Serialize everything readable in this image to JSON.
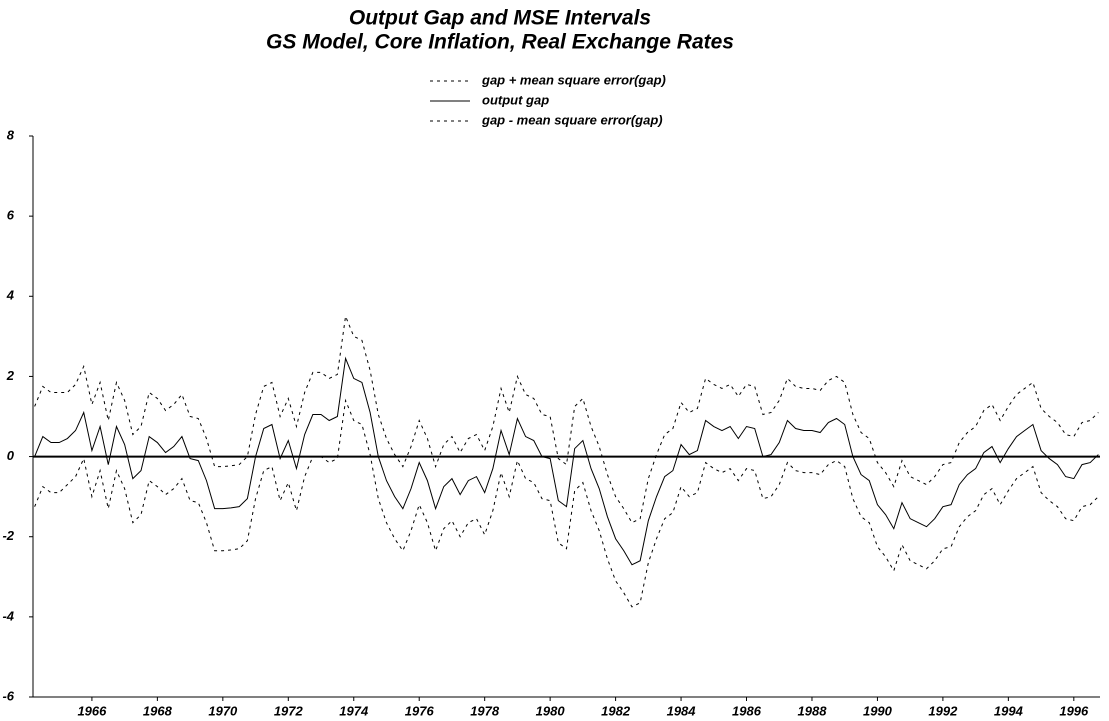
{
  "chart_data": {
    "type": "line",
    "title": "Output Gap and MSE Intervals",
    "subtitle": "GS Model, Core Inflation, Real Exchange Rates",
    "x": [
      1964.25,
      1964.5,
      1964.75,
      1965,
      1965.25,
      1965.5,
      1965.75,
      1966,
      1966.25,
      1966.5,
      1966.75,
      1967,
      1967.25,
      1967.5,
      1967.75,
      1968,
      1968.25,
      1968.5,
      1968.75,
      1969,
      1969.25,
      1969.5,
      1969.75,
      1970,
      1970.25,
      1970.5,
      1970.75,
      1971,
      1971.25,
      1971.5,
      1971.75,
      1972,
      1972.25,
      1972.5,
      1972.75,
      1973,
      1973.25,
      1973.5,
      1973.75,
      1974,
      1974.25,
      1974.5,
      1974.75,
      1975,
      1975.25,
      1975.5,
      1975.75,
      1976,
      1976.25,
      1976.5,
      1976.75,
      1977,
      1977.25,
      1977.5,
      1977.75,
      1978,
      1978.25,
      1978.5,
      1978.75,
      1979,
      1979.25,
      1979.5,
      1979.75,
      1980,
      1980.25,
      1980.5,
      1980.75,
      1981,
      1981.25,
      1981.5,
      1981.75,
      1982,
      1982.25,
      1982.5,
      1982.75,
      1983,
      1983.25,
      1983.5,
      1983.75,
      1984,
      1984.25,
      1984.5,
      1984.75,
      1985,
      1985.25,
      1985.5,
      1985.75,
      1986,
      1986.25,
      1986.5,
      1986.75,
      1987,
      1987.25,
      1987.5,
      1987.75,
      1988,
      1988.25,
      1988.5,
      1988.75,
      1989,
      1989.25,
      1989.5,
      1989.75,
      1990,
      1990.25,
      1990.5,
      1990.75,
      1991,
      1991.25,
      1991.5,
      1991.75,
      1992,
      1992.25,
      1992.5,
      1992.75,
      1993,
      1993.25,
      1993.5,
      1993.75,
      1994,
      1994.25,
      1994.5,
      1994.75,
      1995,
      1995.25,
      1995.5,
      1995.75,
      1996,
      1996.25,
      1996.5,
      1996.75
    ],
    "series": [
      {
        "name": "gap + mean square error(gap)",
        "color": "#000000",
        "style": "dashed",
        "values": [
          1.25,
          1.75,
          1.6,
          1.6,
          1.6,
          1.8,
          2.25,
          1.3,
          1.85,
          0.9,
          1.85,
          1.4,
          0.55,
          0.75,
          1.6,
          1.45,
          1.15,
          1.3,
          1.55,
          1.0,
          0.95,
          0.45,
          -0.25,
          -0.25,
          -0.23,
          -0.2,
          0.0,
          1.05,
          1.75,
          1.85,
          1.0,
          1.45,
          0.75,
          1.6,
          2.1,
          2.1,
          1.95,
          2.05,
          3.5,
          3.0,
          2.9,
          2.15,
          1.05,
          0.45,
          0.05,
          -0.25,
          0.25,
          0.9,
          0.45,
          -0.25,
          0.3,
          0.5,
          0.1,
          0.45,
          0.55,
          0.15,
          0.75,
          1.7,
          1.1,
          2.0,
          1.55,
          1.45,
          1.05,
          1.0,
          -0.05,
          -0.2,
          1.25,
          1.45,
          0.75,
          0.25,
          -0.45,
          -1.0,
          -1.3,
          -1.65,
          -1.55,
          -0.55,
          0.05,
          0.55,
          0.7,
          1.35,
          1.1,
          1.2,
          1.95,
          1.8,
          1.7,
          1.8,
          1.5,
          1.8,
          1.75,
          1.05,
          1.1,
          1.4,
          1.95,
          1.75,
          1.7,
          1.7,
          1.65,
          1.9,
          2.0,
          1.85,
          1.05,
          0.6,
          0.45,
          -0.15,
          -0.4,
          -0.75,
          -0.1,
          -0.5,
          -0.6,
          -0.7,
          -0.5,
          -0.2,
          -0.15,
          0.35,
          0.6,
          0.75,
          1.15,
          1.3,
          0.9,
          1.25,
          1.55,
          1.7,
          1.85,
          1.2,
          1.0,
          0.85,
          0.55,
          0.5,
          0.85,
          0.9,
          1.1
        ]
      },
      {
        "name": "output gap",
        "color": "#000000",
        "style": "solid",
        "values": [
          0.0,
          0.5,
          0.35,
          0.35,
          0.45,
          0.65,
          1.1,
          0.15,
          0.75,
          -0.2,
          0.75,
          0.3,
          -0.55,
          -0.35,
          0.5,
          0.35,
          0.1,
          0.25,
          0.5,
          -0.05,
          -0.1,
          -0.6,
          -1.3,
          -1.3,
          -1.28,
          -1.25,
          -1.05,
          0.0,
          0.7,
          0.8,
          -0.05,
          0.4,
          -0.3,
          0.55,
          1.05,
          1.05,
          0.9,
          1.0,
          2.45,
          1.95,
          1.85,
          1.1,
          0.0,
          -0.6,
          -1.0,
          -1.3,
          -0.8,
          -0.15,
          -0.6,
          -1.3,
          -0.75,
          -0.55,
          -0.95,
          -0.6,
          -0.5,
          -0.9,
          -0.3,
          0.65,
          0.05,
          0.95,
          0.5,
          0.4,
          0.0,
          -0.05,
          -1.1,
          -1.25,
          0.2,
          0.4,
          -0.3,
          -0.8,
          -1.5,
          -2.05,
          -2.35,
          -2.7,
          -2.6,
          -1.6,
          -1.0,
          -0.5,
          -0.35,
          0.3,
          0.05,
          0.15,
          0.9,
          0.75,
          0.65,
          0.75,
          0.45,
          0.75,
          0.7,
          0.0,
          0.05,
          0.35,
          0.9,
          0.7,
          0.65,
          0.65,
          0.6,
          0.85,
          0.95,
          0.8,
          0.0,
          -0.45,
          -0.6,
          -1.2,
          -1.45,
          -1.8,
          -1.15,
          -1.55,
          -1.65,
          -1.75,
          -1.55,
          -1.25,
          -1.2,
          -0.7,
          -0.45,
          -0.3,
          0.1,
          0.25,
          -0.15,
          0.2,
          0.5,
          0.65,
          0.8,
          0.15,
          -0.05,
          -0.2,
          -0.5,
          -0.55,
          -0.2,
          -0.15,
          0.05
        ]
      },
      {
        "name": "gap - mean square error(gap)",
        "color": "#000000",
        "style": "dashed",
        "values": [
          -1.25,
          -0.75,
          -0.9,
          -0.9,
          -0.7,
          -0.5,
          -0.05,
          -1.0,
          -0.35,
          -1.3,
          -0.35,
          -0.8,
          -1.65,
          -1.45,
          -0.6,
          -0.75,
          -0.95,
          -0.8,
          -0.55,
          -1.1,
          -1.15,
          -1.65,
          -2.35,
          -2.35,
          -2.33,
          -2.3,
          -2.1,
          -1.05,
          -0.35,
          -0.25,
          -1.1,
          -0.65,
          -1.35,
          -0.5,
          0.0,
          0.0,
          -0.15,
          -0.05,
          1.4,
          0.9,
          0.8,
          0.05,
          -1.05,
          -1.65,
          -2.05,
          -2.35,
          -1.85,
          -1.2,
          -1.65,
          -2.35,
          -1.8,
          -1.6,
          -2.0,
          -1.65,
          -1.55,
          -1.95,
          -1.35,
          -0.4,
          -1.0,
          -0.1,
          -0.55,
          -0.65,
          -1.05,
          -1.1,
          -2.15,
          -2.3,
          -0.85,
          -0.65,
          -1.35,
          -1.85,
          -2.55,
          -3.1,
          -3.4,
          -3.75,
          -3.65,
          -2.65,
          -2.05,
          -1.55,
          -1.4,
          -0.75,
          -1.0,
          -0.9,
          -0.15,
          -0.3,
          -0.4,
          -0.3,
          -0.6,
          -0.3,
          -0.35,
          -1.05,
          -1.0,
          -0.7,
          -0.15,
          -0.35,
          -0.4,
          -0.4,
          -0.45,
          -0.2,
          -0.1,
          -0.25,
          -1.05,
          -1.5,
          -1.65,
          -2.25,
          -2.5,
          -2.85,
          -2.2,
          -2.6,
          -2.7,
          -2.8,
          -2.6,
          -2.3,
          -2.25,
          -1.75,
          -1.5,
          -1.35,
          -0.95,
          -0.8,
          -1.2,
          -0.85,
          -0.55,
          -0.4,
          -0.25,
          -0.9,
          -1.1,
          -1.25,
          -1.55,
          -1.6,
          -1.25,
          -1.2,
          -1.0
        ]
      }
    ],
    "xlim": [
      1964.2,
      1996.8
    ],
    "xticks": [
      1966,
      1968,
      1970,
      1972,
      1974,
      1976,
      1978,
      1980,
      1982,
      1984,
      1986,
      1988,
      1990,
      1992,
      1994,
      1996
    ],
    "ylim": [
      -6,
      8
    ],
    "yticks": [
      -6,
      -4,
      -2,
      0,
      2,
      4,
      6,
      8
    ],
    "zero_line": true,
    "grid": false
  }
}
